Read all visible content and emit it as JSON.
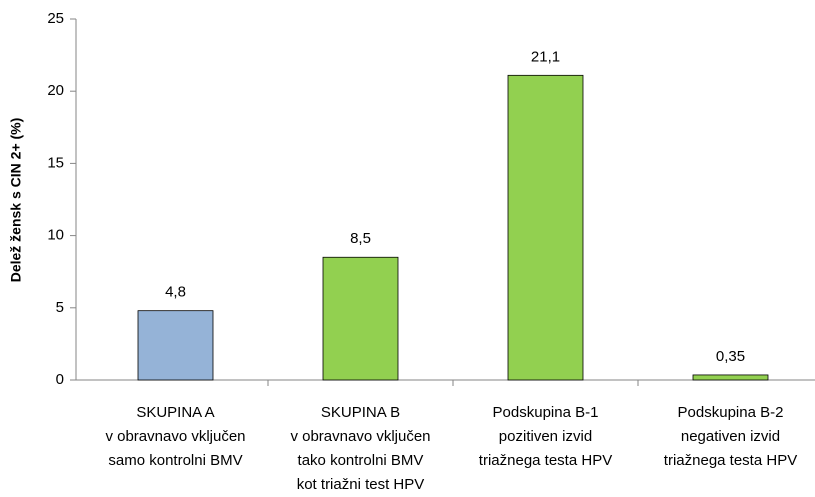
{
  "chart_data": {
    "type": "bar",
    "y_label": "Delež žensk s CIN 2+ (%)",
    "categories": [
      [
        "SKUPINA A",
        "v obravnavo vključen",
        "samo kontrolni BMV"
      ],
      [
        "SKUPINA B",
        "v obravnavo vključen",
        "tako kontrolni BMV",
        "kot triažni test HPV"
      ],
      [
        "Podskupina B-1",
        "pozitiven izvid",
        "triažnega testa HPV"
      ],
      [
        "Podskupina B-2",
        "negativen izvid",
        "triažnega testa HPV"
      ]
    ],
    "values": [
      4.8,
      8.5,
      21.1,
      0.35
    ],
    "value_labels": [
      "4,8",
      "8,5",
      "21,1",
      "0,35"
    ],
    "colors": [
      "#95b3d7",
      "#92d050",
      "#92d050",
      "#92d050"
    ],
    "ylim": [
      0,
      25
    ],
    "yticks": [
      0,
      5,
      10,
      15,
      20,
      25
    ],
    "grid": false
  }
}
